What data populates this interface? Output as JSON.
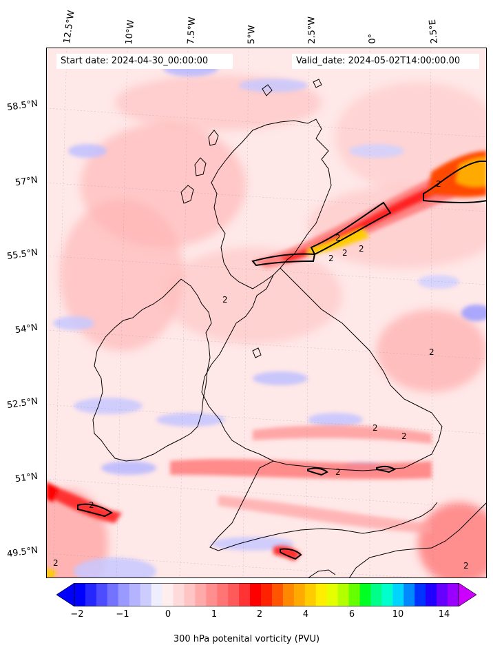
{
  "header": {
    "start_label": "Start date: 2024-04-30_00:00:00",
    "valid_label": "Valid_date: 2024-05-02T14:00:00.00"
  },
  "axes": {
    "lon_ticks": [
      "12.5°W",
      "10°W",
      "7.5°W",
      "5°W",
      "2.5°W",
      "0°",
      "2.5°E"
    ],
    "lat_ticks": [
      "58.5°N",
      "57°N",
      "55.5°N",
      "54°N",
      "52.5°N",
      "51°N",
      "49.5°N"
    ]
  },
  "colorbar": {
    "label": "300 hPa potenital vorticity (PVU)",
    "tick_labels": [
      "−2",
      "−1",
      "0",
      "1",
      "2",
      "4",
      "6",
      "10",
      "14"
    ],
    "colors": [
      "#0000ff",
      "#2626ff",
      "#4d4dff",
      "#7373ff",
      "#9999ff",
      "#b3b3ff",
      "#ccccff",
      "#eeeeff",
      "#ffeeee",
      "#ffdada",
      "#ffc4c4",
      "#ffaaaa",
      "#ff8f8f",
      "#ff7575",
      "#ff5a5a",
      "#ff3333",
      "#ff0000",
      "#ff2200",
      "#ff5500",
      "#ff8800",
      "#ffaa00",
      "#ffcc00",
      "#ffee00",
      "#e6ff00",
      "#b3ff00",
      "#66ff00",
      "#00ff22",
      "#00ff88",
      "#00ffcc",
      "#00d5ff",
      "#0088ff",
      "#0033ff",
      "#2200ff",
      "#6600ff",
      "#9900ff"
    ],
    "under_color": "#0000ff",
    "over_color": "#cc00ff"
  },
  "contour_labels": [
    "2",
    "2",
    "2",
    "2",
    "2",
    "2",
    "2",
    "2",
    "2",
    "2",
    "2",
    "2",
    "2"
  ]
}
